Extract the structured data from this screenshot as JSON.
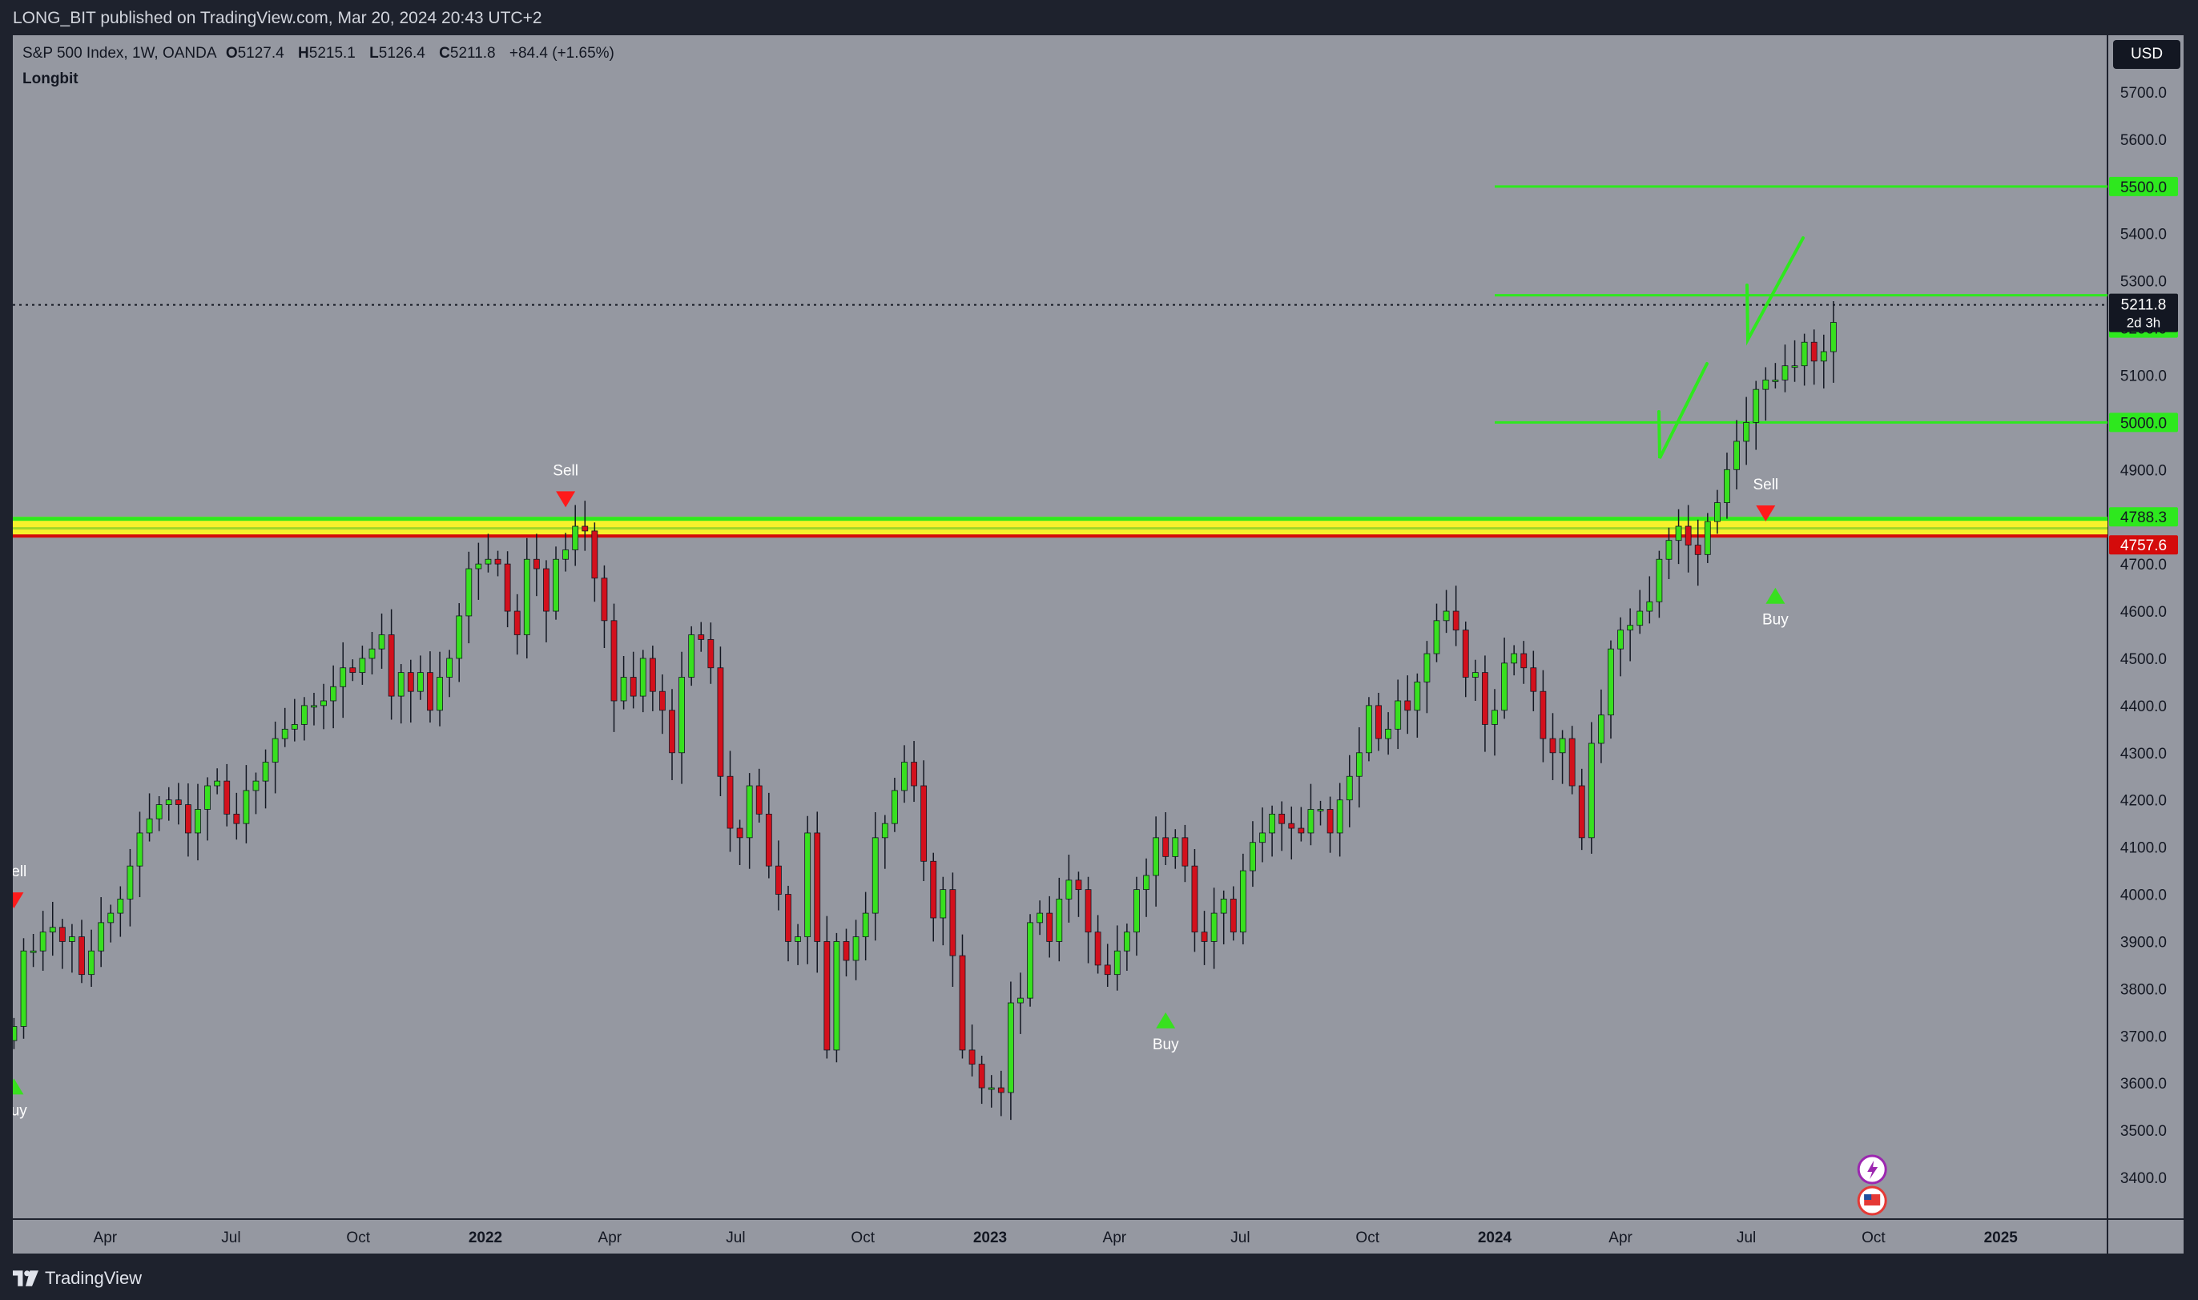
{
  "header": {
    "published_by": "LONG_BIT published on TradingView.com, Mar 20, 2024 20:43 UTC+2"
  },
  "legend": {
    "symbol": "S&P 500 Index, 1W, OANDA",
    "open_label": "O",
    "open_value": "5127.4",
    "high_label": "H",
    "high_value": "5215.1",
    "low_label": "L",
    "low_value": "5126.4",
    "close_label": "C",
    "close_value": "5211.8",
    "change": "+84.4 (+1.65%)",
    "indicator": "Longbit"
  },
  "currency_button": "USD",
  "footer": {
    "brand": "TradingView"
  },
  "colors": {
    "background": "#9598a1",
    "up": "#38e01f",
    "down": "#d3101c",
    "level_green": "#2ee81e",
    "band_yellow": "#f7f12c",
    "band_red": "#d40b0b"
  },
  "chart_data": {
    "type": "candlestick",
    "title": "S&P 500 Index, 1W, OANDA",
    "y_ticks": [
      3400,
      3500,
      3600,
      3700,
      3800,
      3900,
      4000,
      4100,
      4200,
      4300,
      4400,
      4500,
      4600,
      4700,
      4800,
      4900,
      5000,
      5100,
      5200,
      5300,
      5400,
      5500,
      5600,
      5700
    ],
    "y_tick_labels": [
      "3400.0",
      "3500.0",
      "3600.0",
      "3700.0",
      "3800.0",
      "3900.0",
      "4000.0",
      "4100.0",
      "4200.0",
      "4300.0",
      "4400.0",
      "4500.0",
      "4600.0",
      "4700.0",
      "4800.0",
      "4900.0",
      "5000.0",
      "5100.0",
      "5200.0",
      "5300.0",
      "5400.0",
      "5500.0",
      "5600.0",
      "5700.0"
    ],
    "ylim": [
      3300,
      5790
    ],
    "x_ticks": [
      {
        "label": "Apr",
        "date": "2021-04-01",
        "bold": false
      },
      {
        "label": "Jul",
        "date": "2021-07-01",
        "bold": false
      },
      {
        "label": "Oct",
        "date": "2021-10-01",
        "bold": false
      },
      {
        "label": "2022",
        "date": "2022-01-01",
        "bold": true
      },
      {
        "label": "Apr",
        "date": "2022-04-01",
        "bold": false
      },
      {
        "label": "Jul",
        "date": "2022-07-01",
        "bold": false
      },
      {
        "label": "Oct",
        "date": "2022-10-01",
        "bold": false
      },
      {
        "label": "2023",
        "date": "2023-01-01",
        "bold": true
      },
      {
        "label": "Apr",
        "date": "2023-04-01",
        "bold": false
      },
      {
        "label": "Jul",
        "date": "2023-07-01",
        "bold": false
      },
      {
        "label": "Oct",
        "date": "2023-10-01",
        "bold": false
      },
      {
        "label": "2024",
        "date": "2024-01-01",
        "bold": true
      },
      {
        "label": "Apr",
        "date": "2024-04-01",
        "bold": false
      },
      {
        "label": "Jul",
        "date": "2024-07-01",
        "bold": false
      },
      {
        "label": "Oct",
        "date": "2024-10-01",
        "bold": false
      },
      {
        "label": "2025",
        "date": "2025-01-01",
        "bold": true
      }
    ],
    "closes": [
      3720,
      3880,
      3880,
      3920,
      3930,
      3900,
      3910,
      3830,
      3880,
      3940,
      3960,
      3990,
      4060,
      4130,
      4160,
      4190,
      4200,
      4190,
      4130,
      4180,
      4230,
      4240,
      4170,
      4150,
      4220,
      4240,
      4280,
      4330,
      4350,
      4360,
      4400,
      4400,
      4410,
      4440,
      4480,
      4470,
      4500,
      4520,
      4550,
      4420,
      4470,
      4430,
      4470,
      4390,
      4460,
      4500,
      4590,
      4690,
      4700,
      4710,
      4700,
      4600,
      4550,
      4710,
      4690,
      4600,
      4710,
      4730,
      4780,
      4770,
      4670,
      4580,
      4410,
      4460,
      4420,
      4500,
      4430,
      4390,
      4300,
      4460,
      4550,
      4540,
      4480,
      4250,
      4140,
      4120,
      4230,
      4170,
      4060,
      4000,
      3900,
      3910,
      4130,
      3900,
      3670,
      3900,
      3860,
      3910,
      3960,
      4120,
      4150,
      4220,
      4280,
      4230,
      4070,
      3950,
      4010,
      3870,
      3670,
      3640,
      3590,
      3590,
      3580,
      3770,
      3780,
      3940,
      3960,
      3900,
      3990,
      4030,
      4010,
      3920,
      3850,
      3830,
      3880,
      3920,
      4010,
      4040,
      4120,
      4080,
      4120,
      4060,
      3920,
      3900,
      3960,
      3990,
      3920,
      4050,
      4110,
      4130,
      4170,
      4150,
      4140,
      4130,
      4180,
      4180,
      4130,
      4200,
      4250,
      4300,
      4400,
      4330,
      4350,
      4410,
      4390,
      4450,
      4510,
      4580,
      4600,
      4560,
      4460,
      4470,
      4360,
      4390,
      4490,
      4510,
      4480,
      4430,
      4330,
      4300,
      4330,
      4230,
      4120,
      4320,
      4380,
      4520,
      4560,
      4570,
      4600,
      4620,
      4710,
      4750,
      4780,
      4740,
      4720,
      4790,
      4830,
      4900,
      4960,
      5000,
      5070,
      5090,
      5090,
      5120,
      5120,
      5170,
      5130,
      5150,
      5212
    ],
    "candles_note": "weekly OHLC approximated from closes",
    "levels": [
      {
        "value": 5500.0,
        "label": "5500.0",
        "color": "#2ee81e"
      },
      {
        "value": 5200.0,
        "label": "5200.0",
        "color": "#2ee81e"
      },
      {
        "value": 5000.0,
        "label": "5000.0",
        "color": "#2ee81e"
      },
      {
        "value": 4788.3,
        "label": "4788.3",
        "color": "#2ee81e"
      },
      {
        "value": 4757.6,
        "label": "4757.6",
        "color": "#d40b0b"
      }
    ],
    "last_price": {
      "value": 5211.8,
      "label": "5211.8",
      "countdown": "2d 3h"
    },
    "signals": [
      {
        "type": "sell",
        "text": "Sell",
        "index": 0,
        "value": 3960
      },
      {
        "type": "buy",
        "text": "Buy",
        "index": 0,
        "value": 3620
      },
      {
        "type": "sell",
        "text": "Sell",
        "index": 57,
        "value": 4810
      },
      {
        "type": "buy",
        "text": "Buy",
        "index": 119,
        "value": 3760
      },
      {
        "type": "sell",
        "text": "Sell",
        "index": 181,
        "value": 4780
      },
      {
        "type": "buy",
        "text": "Buy",
        "index": 182,
        "value": 4660
      }
    ]
  }
}
